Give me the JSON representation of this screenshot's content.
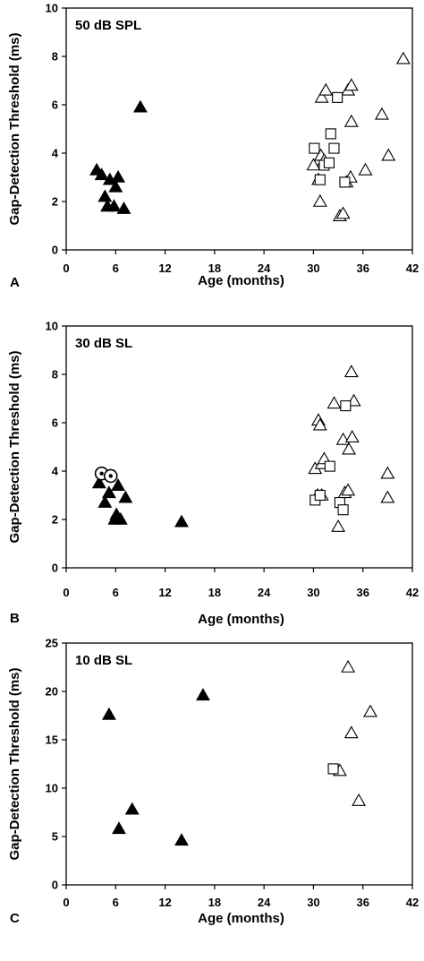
{
  "chart_data": [
    {
      "type": "scatter",
      "panel": "A",
      "condition": "50 dB SPL",
      "xlabel": "Age (months)",
      "ylabel": "Gap-Detection Threshold (ms)",
      "xlim": [
        0,
        42
      ],
      "ylim": [
        0,
        10
      ],
      "xticks": [
        0,
        6,
        12,
        18,
        24,
        30,
        36,
        42
      ],
      "yticks": [
        0,
        2,
        4,
        6,
        8,
        10
      ],
      "series": [
        {
          "marker": "filled-triangle",
          "points": [
            [
              3.7,
              3.3
            ],
            [
              4.3,
              3.1
            ],
            [
              4.7,
              2.2
            ],
            [
              5.0,
              1.8
            ],
            [
              5.3,
              2.9
            ],
            [
              5.8,
              1.8
            ],
            [
              6.0,
              2.6
            ],
            [
              6.3,
              3.0
            ],
            [
              7.0,
              1.7
            ],
            [
              9.0,
              5.9
            ]
          ]
        },
        {
          "marker": "open-triangle",
          "points": [
            [
              30.0,
              3.5
            ],
            [
              30.6,
              2.9
            ],
            [
              30.8,
              2.0
            ],
            [
              30.9,
              3.9
            ],
            [
              31.0,
              6.3
            ],
            [
              31.3,
              3.7
            ],
            [
              31.5,
              6.6
            ],
            [
              33.2,
              1.4
            ],
            [
              33.6,
              1.5
            ],
            [
              34.0,
              2.8
            ],
            [
              34.2,
              6.6
            ],
            [
              34.5,
              3.0
            ],
            [
              34.6,
              6.8
            ],
            [
              34.6,
              5.3
            ],
            [
              36.3,
              3.3
            ],
            [
              38.3,
              5.6
            ],
            [
              39.1,
              3.9
            ],
            [
              40.9,
              7.9
            ]
          ]
        },
        {
          "marker": "open-square",
          "points": [
            [
              30.1,
              4.2
            ],
            [
              30.8,
              2.9
            ],
            [
              31.3,
              3.5
            ],
            [
              31.9,
              3.6
            ],
            [
              32.1,
              4.8
            ],
            [
              32.5,
              4.2
            ],
            [
              32.9,
              6.3
            ],
            [
              33.8,
              2.8
            ]
          ]
        }
      ]
    },
    {
      "type": "scatter",
      "panel": "B",
      "condition": "30 dB SL",
      "xlabel": "Age (months)",
      "ylabel": "Gap-Detection Threshold (ms)",
      "xlim": [
        0,
        42
      ],
      "ylim": [
        0,
        10
      ],
      "xticks": [
        0,
        6,
        12,
        18,
        24,
        30,
        36,
        42
      ],
      "yticks": [
        0,
        2,
        4,
        6,
        8,
        10
      ],
      "series": [
        {
          "marker": "filled-triangle",
          "points": [
            [
              4.0,
              3.5
            ],
            [
              4.7,
              2.7
            ],
            [
              5.2,
              3.1
            ],
            [
              5.9,
              2.0
            ],
            [
              6.1,
              2.2
            ],
            [
              6.3,
              3.4
            ],
            [
              6.6,
              2.0
            ],
            [
              7.2,
              2.9
            ],
            [
              14.0,
              1.9
            ]
          ]
        },
        {
          "marker": "circled-dot",
          "points": [
            [
              4.3,
              3.9
            ],
            [
              5.4,
              3.8
            ]
          ]
        },
        {
          "marker": "open-triangle",
          "points": [
            [
              30.2,
              4.1
            ],
            [
              30.5,
              3.0
            ],
            [
              30.6,
              6.1
            ],
            [
              30.8,
              5.9
            ],
            [
              31.0,
              3.0
            ],
            [
              31.0,
              4.3
            ],
            [
              31.3,
              4.5
            ],
            [
              32.5,
              6.8
            ],
            [
              33.0,
              1.7
            ],
            [
              33.6,
              5.3
            ],
            [
              33.8,
              3.1
            ],
            [
              34.2,
              3.2
            ],
            [
              34.3,
              4.9
            ],
            [
              34.6,
              8.1
            ],
            [
              34.7,
              5.4
            ],
            [
              34.9,
              6.9
            ],
            [
              39.0,
              3.9
            ],
            [
              39.0,
              2.9
            ]
          ]
        },
        {
          "marker": "open-square",
          "points": [
            [
              30.2,
              2.8
            ],
            [
              30.8,
              3.0
            ],
            [
              32.0,
              4.2
            ],
            [
              33.2,
              2.7
            ],
            [
              33.6,
              2.4
            ],
            [
              33.9,
              6.7
            ]
          ]
        }
      ]
    },
    {
      "type": "scatter",
      "panel": "C",
      "condition": "10 dB SL",
      "xlabel": "Age (months)",
      "ylabel": "Gap-Detection Threshold (ms)",
      "xlim": [
        0,
        42
      ],
      "ylim": [
        0,
        25
      ],
      "xticks": [
        0,
        6,
        12,
        18,
        24,
        30,
        36,
        42
      ],
      "yticks": [
        0,
        5,
        10,
        15,
        20,
        25
      ],
      "series": [
        {
          "marker": "filled-triangle",
          "points": [
            [
              5.2,
              17.6
            ],
            [
              6.4,
              5.8
            ],
            [
              8.0,
              7.8
            ],
            [
              14.0,
              4.6
            ],
            [
              16.6,
              19.6
            ]
          ]
        },
        {
          "marker": "open-triangle",
          "points": [
            [
              33.2,
              11.8
            ],
            [
              34.2,
              22.5
            ],
            [
              34.6,
              15.7
            ],
            [
              35.5,
              8.7
            ],
            [
              36.9,
              17.9
            ]
          ]
        },
        {
          "marker": "open-square",
          "points": [
            [
              32.4,
              12.0
            ]
          ]
        }
      ]
    }
  ]
}
